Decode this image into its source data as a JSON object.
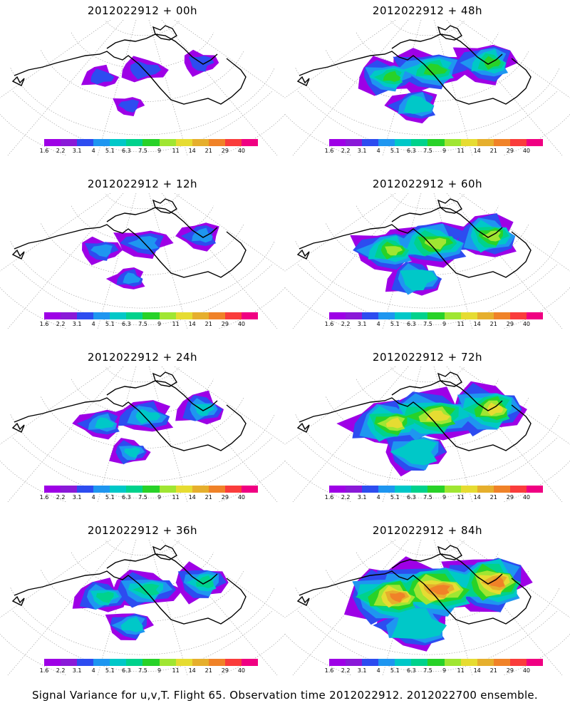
{
  "panels": [
    {
      "title": "2012022912 + 00h",
      "intensity": 0.15
    },
    {
      "title": "2012022912 + 48h",
      "intensity": 0.55
    },
    {
      "title": "2012022912 + 12h",
      "intensity": 0.25
    },
    {
      "title": "2012022912 + 60h",
      "intensity": 0.65
    },
    {
      "title": "2012022912 + 24h",
      "intensity": 0.35
    },
    {
      "title": "2012022912 + 72h",
      "intensity": 0.8
    },
    {
      "title": "2012022912 + 36h",
      "intensity": 0.45
    },
    {
      "title": "2012022912 + 84h",
      "intensity": 0.95
    }
  ],
  "colorbar": {
    "labels": [
      "1.6",
      "2.2",
      "3.1",
      "4",
      "5.1",
      "6.3",
      "7.5",
      "9",
      "11",
      "14",
      "21",
      "29",
      "40"
    ],
    "colors": [
      "#9e00e6",
      "#8a19d8",
      "#2d4cf0",
      "#1e96f0",
      "#00c8c8",
      "#00d28c",
      "#28d228",
      "#a0e632",
      "#e6dc32",
      "#e6af2d",
      "#f08228",
      "#fa3c3c",
      "#f00082"
    ]
  },
  "footer": "Signal Variance for u,v,T. Flight 65. Observation time 2012022912. 2012022700 ensemble."
}
